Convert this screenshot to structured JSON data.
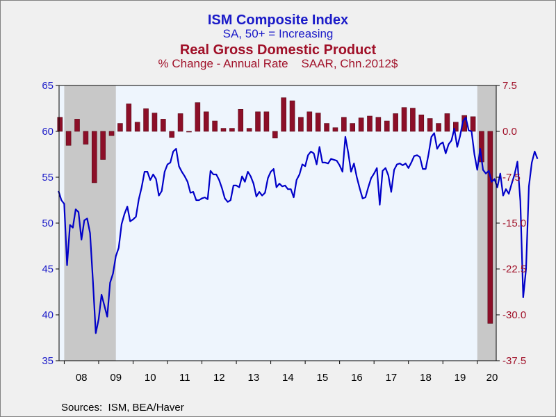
{
  "titles": {
    "line1": "ISM Composite Index",
    "line2": "SA, 50+ = Increasing",
    "line3": "Real Gross Domestic Product",
    "line4": "% Change - Annual Rate    SAAR, Chn.2012$"
  },
  "source": "Sources:  ISM, BEA/Haver",
  "colors": {
    "ism": "#0000c8",
    "gdp": "#8c0f28",
    "plot_bg": "#eef5fd",
    "recession": "#c8c8c8",
    "left_axis": "#1a1ac8",
    "right_axis": "#a01028"
  },
  "chart_data": {
    "type": "bar+line",
    "x_tick_labels": [
      "08",
      "09",
      "10",
      "11",
      "12",
      "13",
      "14",
      "15",
      "16",
      "17",
      "18",
      "19",
      "20"
    ],
    "x_range": [
      2007.85,
      2020.55
    ],
    "left_axis": {
      "ylim": [
        35,
        65
      ],
      "ticks": [
        "35",
        "40",
        "45",
        "50",
        "55",
        "60",
        "65"
      ]
    },
    "right_axis": {
      "ylim": [
        -37.5,
        7.5
      ],
      "ticks": [
        "-37.5",
        "-30.0",
        "-22.5",
        "-15.0",
        "-7.5",
        "0.0",
        "7.5"
      ]
    },
    "recession_shading": [
      [
        2008.0,
        2009.5
      ],
      [
        2020.0,
        2020.55
      ]
    ],
    "series": [
      {
        "name": "ISM Composite Index",
        "type": "line",
        "axis": "left",
        "color": "#0000c8",
        "x_start": 2007.833,
        "step_months": 1,
        "values": [
          53.5,
          52.5,
          52.1,
          45.4,
          49.8,
          49.5,
          51.5,
          51.2,
          48.2,
          50.3,
          50.5,
          48.9,
          43.7,
          38.0,
          39.5,
          42.2,
          41.0,
          39.8,
          43.5,
          44.5,
          46.4,
          47.3,
          49.9,
          51.0,
          51.8,
          50.2,
          50.4,
          50.7,
          52.6,
          53.9,
          55.6,
          55.6,
          54.7,
          55.3,
          54.8,
          53.0,
          53.5,
          55.6,
          56.4,
          56.6,
          57.8,
          58.1,
          56.2,
          55.6,
          55.1,
          54.5,
          53.3,
          53.4,
          52.5,
          52.5,
          52.7,
          52.8,
          52.6,
          55.7,
          55.3,
          55.3,
          54.7,
          53.8,
          52.7,
          52.3,
          52.5,
          54.1,
          54.1,
          53.9,
          55.1,
          54.5,
          55.6,
          55.1,
          54.3,
          52.9,
          53.4,
          53.0,
          53.3,
          54.9,
          55.6,
          55.9,
          53.9,
          54.3,
          54.0,
          54.1,
          53.7,
          53.7,
          52.8,
          54.7,
          55.3,
          56.4,
          56.2,
          57.4,
          57.8,
          57.6,
          56.4,
          58.3,
          56.6,
          56.6,
          56.5,
          57.0,
          56.9,
          56.8,
          56.3,
          55.6,
          59.4,
          57.7,
          55.6,
          56.5,
          55.0,
          53.8,
          52.7,
          52.8,
          53.9,
          54.9,
          55.4,
          56.0,
          52.0,
          55.7,
          56.0,
          55.2,
          53.4,
          55.8,
          56.4,
          56.5,
          56.3,
          56.5,
          56.0,
          56.6,
          57.3,
          57.4,
          57.2,
          55.9,
          55.9,
          57.5,
          59.4,
          59.8,
          58.1,
          58.6,
          58.8,
          57.6,
          58.6,
          59.0,
          60.3,
          58.3,
          59.5,
          61.1,
          61.5,
          60.1,
          60.0,
          57.5,
          55.8,
          58.1,
          55.8,
          55.4,
          55.7,
          54.5,
          54.8,
          53.9,
          55.4,
          53.0,
          53.7,
          53.2,
          54.3,
          55.3,
          56.7,
          52.4,
          41.9,
          45.0,
          54.0,
          56.6,
          57.8,
          57.0
        ]
      },
      {
        "name": "Real Gross Domestic Product",
        "type": "bar",
        "axis": "right",
        "color": "#8c0f28",
        "quarters": [
          "2007Q4",
          "2008Q1",
          "2008Q2",
          "2008Q3",
          "2008Q4",
          "2009Q1",
          "2009Q2",
          "2009Q3",
          "2009Q4",
          "2010Q1",
          "2010Q2",
          "2010Q3",
          "2010Q4",
          "2011Q1",
          "2011Q2",
          "2011Q3",
          "2011Q4",
          "2012Q1",
          "2012Q2",
          "2012Q3",
          "2012Q4",
          "2013Q1",
          "2013Q2",
          "2013Q3",
          "2013Q4",
          "2014Q1",
          "2014Q2",
          "2014Q3",
          "2014Q4",
          "2015Q1",
          "2015Q2",
          "2015Q3",
          "2015Q4",
          "2016Q1",
          "2016Q2",
          "2016Q3",
          "2016Q4",
          "2017Q1",
          "2017Q2",
          "2017Q3",
          "2017Q4",
          "2018Q1",
          "2018Q2",
          "2018Q3",
          "2018Q4",
          "2019Q1",
          "2019Q2",
          "2019Q3",
          "2019Q4",
          "2020Q1",
          "2020Q2",
          "2020Q3"
        ],
        "values": [
          2.3,
          -2.3,
          2.0,
          -2.1,
          -8.4,
          -4.6,
          -0.7,
          1.3,
          4.5,
          1.5,
          3.7,
          3.0,
          2.0,
          -1.0,
          2.9,
          -0.1,
          4.7,
          3.2,
          1.7,
          0.5,
          0.5,
          3.6,
          0.5,
          3.2,
          3.2,
          -1.1,
          5.5,
          5.0,
          2.3,
          3.2,
          3.0,
          1.3,
          0.6,
          2.3,
          1.3,
          2.2,
          2.5,
          2.3,
          1.7,
          2.9,
          3.9,
          3.8,
          2.7,
          2.1,
          1.3,
          2.9,
          1.5,
          2.6,
          2.4,
          -5.0,
          -31.4,
          null
        ]
      }
    ]
  }
}
